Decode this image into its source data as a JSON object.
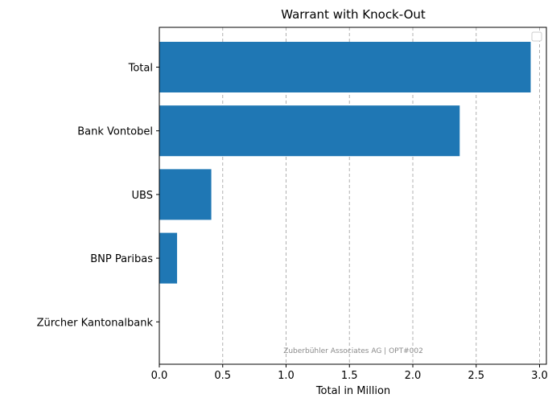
{
  "chart_data": {
    "type": "bar",
    "orientation": "horizontal",
    "title": "Warrant with Knock-Out",
    "xlabel": "Total in Million",
    "ylabel": "",
    "categories": [
      "Total",
      "Bank Vontobel",
      "UBS",
      "BNP Paribas",
      "Zürcher Kantonalbank"
    ],
    "values": [
      2.93,
      2.37,
      0.41,
      0.14,
      0.0
    ],
    "xlim": [
      0,
      3.05
    ],
    "xticks": [
      "0.0",
      "0.5",
      "1.0",
      "1.5",
      "2.0",
      "2.5",
      "3.0"
    ],
    "grid": "x-dashed",
    "legend": "top-right",
    "bar_color": "#1f77b4",
    "watermark": "Zuberbühler Associates AG | OPT#002"
  }
}
